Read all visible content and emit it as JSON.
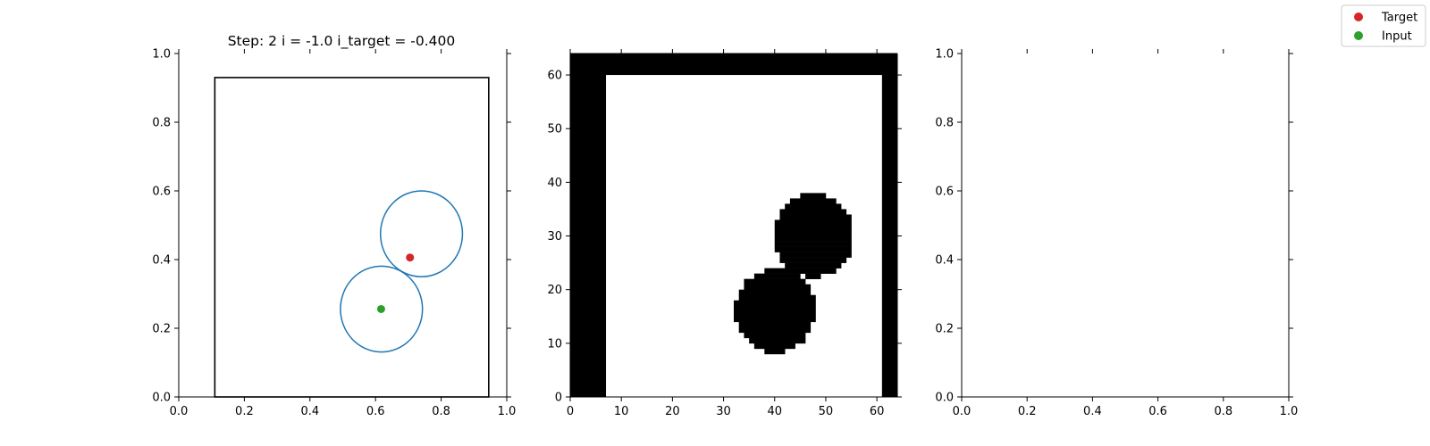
{
  "chart_data": [
    {
      "type": "scatter",
      "title": "Step: 2 i = -1.0 i_target = -0.400",
      "xlim": [
        0,
        1
      ],
      "ylim": [
        0,
        1
      ],
      "xticks": [
        "0.0",
        "0.2",
        "0.4",
        "0.6",
        "0.8",
        "1.0"
      ],
      "yticks": [
        "0.0",
        "0.2",
        "0.4",
        "0.6",
        "0.8",
        "1.0"
      ],
      "tick_values": [
        0,
        0.2,
        0.4,
        0.6,
        0.8,
        1.0
      ],
      "box": {
        "x0": 0.11,
        "x1": 0.945,
        "y0": 0.0,
        "y1": 0.93,
        "color": "#000000"
      },
      "circles": [
        {
          "cx": 0.74,
          "cy": 0.475,
          "rx": 0.125,
          "ry": 0.125,
          "color": "#1f77b4"
        },
        {
          "cx": 0.618,
          "cy": 0.256,
          "rx": 0.125,
          "ry": 0.125,
          "color": "#1f77b4"
        }
      ],
      "series": [
        {
          "name": "Target",
          "color": "#d62728",
          "x": [
            0.705
          ],
          "y": [
            0.406
          ]
        },
        {
          "name": "Input",
          "color": "#2ca02c",
          "x": [
            0.617
          ],
          "y": [
            0.256
          ]
        }
      ]
    },
    {
      "type": "heatmap",
      "xlim": [
        0,
        64
      ],
      "ylim": [
        0,
        64
      ],
      "xticks": [
        "0",
        "10",
        "20",
        "30",
        "40",
        "50",
        "60"
      ],
      "yticks": [
        "0",
        "10",
        "20",
        "30",
        "40",
        "50",
        "60"
      ],
      "tick_values": [
        0,
        10,
        20,
        30,
        40,
        50,
        60
      ],
      "colors": {
        "occupied": "#000000",
        "free": "#ffffff"
      },
      "walls": [
        {
          "x0": 0,
          "x1": 7,
          "y0": 0,
          "y1": 64
        },
        {
          "x0": 0,
          "x1": 64,
          "y0": 60,
          "y1": 64
        },
        {
          "x0": 61,
          "x1": 64,
          "y0": 0,
          "y1": 64
        }
      ],
      "blobs": [
        {
          "cx": 47.6,
          "cy": 30.1,
          "r": 7.8
        },
        {
          "cx": 40.1,
          "cy": 16.1,
          "r": 7.8
        }
      ]
    },
    {
      "type": "scatter",
      "xlim": [
        0,
        1
      ],
      "ylim": [
        0,
        1
      ],
      "xticks": [
        "0.0",
        "0.2",
        "0.4",
        "0.6",
        "0.8",
        "1.0"
      ],
      "yticks": [
        "0.0",
        "0.2",
        "0.4",
        "0.6",
        "0.8",
        "1.0"
      ],
      "tick_values": [
        0,
        0.2,
        0.4,
        0.6,
        0.8,
        1.0
      ]
    }
  ],
  "legend": {
    "placement": "top-right",
    "items": [
      {
        "label": "Target",
        "color": "#d62728"
      },
      {
        "label": "Input",
        "color": "#2ca02c"
      }
    ]
  }
}
